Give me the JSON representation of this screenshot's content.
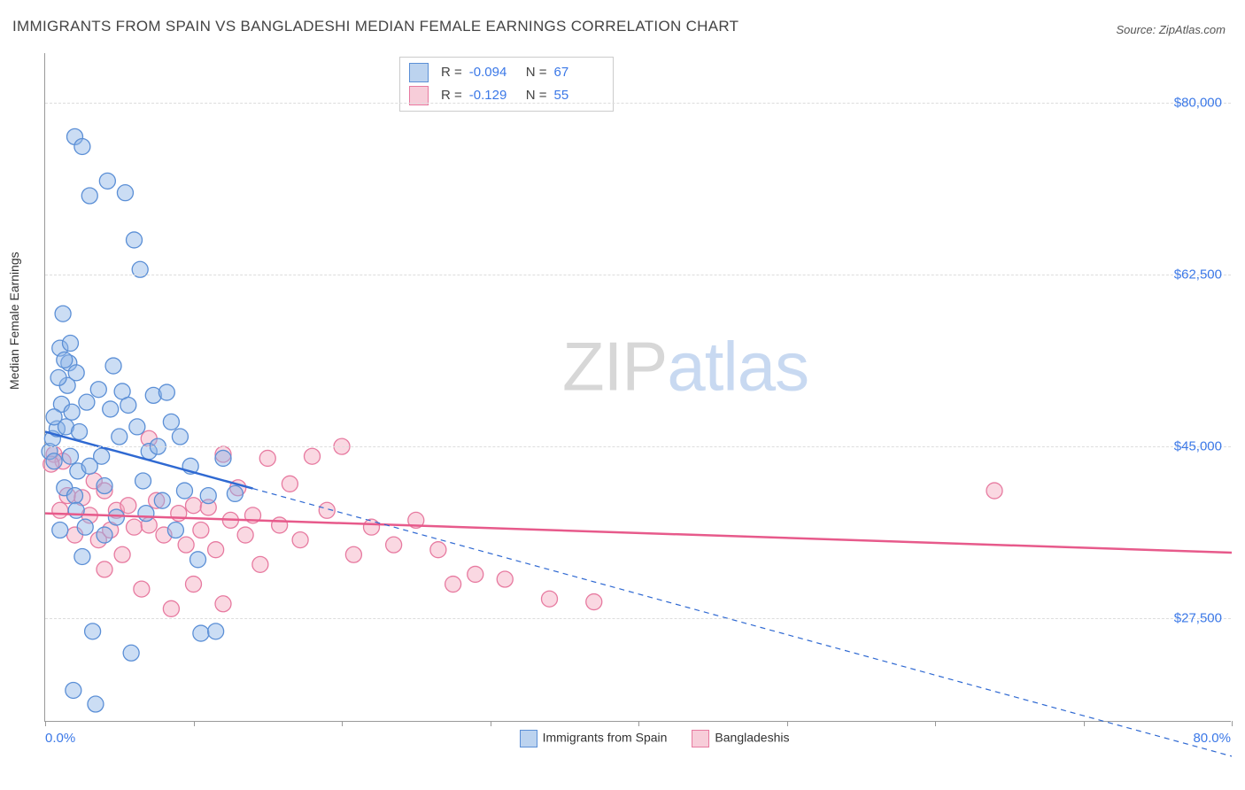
{
  "title": "IMMIGRANTS FROM SPAIN VS BANGLADESHI MEDIAN FEMALE EARNINGS CORRELATION CHART",
  "source_prefix": "Source: ",
  "source_name": "ZipAtlas.com",
  "ylabel": "Median Female Earnings",
  "watermark_a": "ZIP",
  "watermark_b": "atlas",
  "chart": {
    "type": "scatter",
    "xlim": [
      0,
      80
    ],
    "ylim": [
      17000,
      85000
    ],
    "y_ticks": [
      27500,
      45000,
      62500,
      80000
    ],
    "y_tick_labels": [
      "$27,500",
      "$45,000",
      "$62,500",
      "$80,000"
    ],
    "x_ticks": [
      0,
      10,
      20,
      30,
      40,
      50,
      60,
      70,
      80
    ],
    "x_min_label": "0.0%",
    "x_max_label": "80.0%",
    "marker_radius": 9,
    "background_color": "#ffffff",
    "grid_color": "#dddddd",
    "axis_color": "#999999"
  },
  "series": {
    "blue": {
      "label": "Immigrants from Spain",
      "fill": "rgba(140,180,230,0.45)",
      "stroke": "#5b8fd6",
      "swatch_fill": "#bcd3ef",
      "swatch_border": "#5b8fd6",
      "R": "-0.094",
      "N": "67",
      "trend": {
        "y_at_x0": 46500,
        "y_at_x80": 13500,
        "solid_max_x": 14,
        "color": "#2f69d2",
        "width": 2.5
      },
      "points": [
        [
          0.3,
          44500
        ],
        [
          0.5,
          45800
        ],
        [
          0.6,
          43500
        ],
        [
          0.8,
          46800
        ],
        [
          1.0,
          55000
        ],
        [
          1.1,
          49300
        ],
        [
          1.2,
          58500
        ],
        [
          1.3,
          40800
        ],
        [
          1.4,
          47000
        ],
        [
          1.5,
          51200
        ],
        [
          1.6,
          53500
        ],
        [
          1.7,
          44000
        ],
        [
          1.8,
          48500
        ],
        [
          1.9,
          20200
        ],
        [
          2.0,
          76500
        ],
        [
          2.1,
          52500
        ],
        [
          2.2,
          42500
        ],
        [
          2.3,
          46500
        ],
        [
          2.5,
          75500
        ],
        [
          2.7,
          36800
        ],
        [
          2.8,
          49500
        ],
        [
          3.0,
          70500
        ],
        [
          3.2,
          26200
        ],
        [
          3.4,
          18800
        ],
        [
          3.6,
          50800
        ],
        [
          3.8,
          44000
        ],
        [
          4.0,
          36000
        ],
        [
          4.2,
          72000
        ],
        [
          4.4,
          48800
        ],
        [
          4.6,
          53200
        ],
        [
          4.8,
          37800
        ],
        [
          5.0,
          46000
        ],
        [
          5.2,
          50600
        ],
        [
          5.4,
          70800
        ],
        [
          5.6,
          49200
        ],
        [
          5.8,
          24000
        ],
        [
          6.0,
          66000
        ],
        [
          6.2,
          47000
        ],
        [
          6.4,
          63000
        ],
        [
          6.6,
          41500
        ],
        [
          6.8,
          38200
        ],
        [
          7.0,
          44500
        ],
        [
          7.3,
          50200
        ],
        [
          7.6,
          45000
        ],
        [
          7.9,
          39500
        ],
        [
          8.2,
          50500
        ],
        [
          8.5,
          47500
        ],
        [
          8.8,
          36500
        ],
        [
          9.1,
          46000
        ],
        [
          9.4,
          40500
        ],
        [
          9.8,
          43000
        ],
        [
          10.3,
          33500
        ],
        [
          10.5,
          26000
        ],
        [
          11.0,
          40000
        ],
        [
          11.5,
          26200
        ],
        [
          12.0,
          43800
        ],
        [
          12.8,
          40200
        ],
        [
          2.0,
          40000
        ],
        [
          3.0,
          43000
        ],
        [
          4.0,
          41000
        ],
        [
          1.0,
          36500
        ],
        [
          0.6,
          48000
        ],
        [
          0.9,
          52000
        ],
        [
          1.3,
          53800
        ],
        [
          1.7,
          55500
        ],
        [
          2.1,
          38500
        ],
        [
          2.5,
          33800
        ]
      ]
    },
    "pink": {
      "label": "Bangladeshis",
      "fill": "rgba(244,168,190,0.45)",
      "stroke": "#e77aa0",
      "swatch_fill": "#f7cdd9",
      "swatch_border": "#e77aa0",
      "R": "-0.129",
      "N": "55",
      "trend": {
        "y_at_x0": 38200,
        "y_at_x80": 34200,
        "solid_max_x": 80,
        "color": "#e75a8b",
        "width": 2.5
      },
      "points": [
        [
          0.6,
          44200
        ],
        [
          1.0,
          38500
        ],
        [
          1.5,
          40000
        ],
        [
          2.0,
          36000
        ],
        [
          2.5,
          39800
        ],
        [
          3.0,
          38000
        ],
        [
          3.3,
          41500
        ],
        [
          3.6,
          35500
        ],
        [
          4.0,
          40500
        ],
        [
          4.4,
          36500
        ],
        [
          4.8,
          38500
        ],
        [
          5.2,
          34000
        ],
        [
          5.6,
          39000
        ],
        [
          6.0,
          36800
        ],
        [
          6.5,
          30500
        ],
        [
          7.0,
          37000
        ],
        [
          7.5,
          39500
        ],
        [
          8.0,
          36000
        ],
        [
          8.5,
          28500
        ],
        [
          9.0,
          38200
        ],
        [
          9.5,
          35000
        ],
        [
          10.0,
          39000
        ],
        [
          10.5,
          36500
        ],
        [
          11.0,
          38800
        ],
        [
          11.5,
          34500
        ],
        [
          12.0,
          44200
        ],
        [
          12.5,
          37500
        ],
        [
          13.0,
          40800
        ],
        [
          13.5,
          36000
        ],
        [
          14.0,
          38000
        ],
        [
          14.5,
          33000
        ],
        [
          15.0,
          43800
        ],
        [
          15.8,
          37000
        ],
        [
          16.5,
          41200
        ],
        [
          17.2,
          35500
        ],
        [
          18.0,
          44000
        ],
        [
          19.0,
          38500
        ],
        [
          20.0,
          45000
        ],
        [
          20.8,
          34000
        ],
        [
          22.0,
          36800
        ],
        [
          23.5,
          35000
        ],
        [
          25.0,
          37500
        ],
        [
          26.5,
          34500
        ],
        [
          27.5,
          31000
        ],
        [
          29.0,
          32000
        ],
        [
          31.0,
          31500
        ],
        [
          34.0,
          29500
        ],
        [
          37.0,
          29200
        ],
        [
          7.0,
          45800
        ],
        [
          12.0,
          29000
        ],
        [
          10.0,
          31000
        ],
        [
          4.0,
          32500
        ],
        [
          64.0,
          40500
        ],
        [
          1.2,
          43500
        ],
        [
          0.4,
          43200
        ]
      ]
    }
  },
  "stat_legend_labels": {
    "R": "R =",
    "N": "N ="
  }
}
